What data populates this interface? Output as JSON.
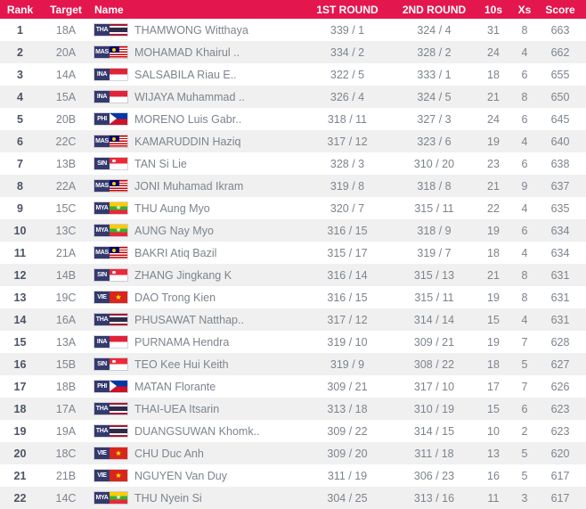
{
  "colors": {
    "header_bg": "#e3164e",
    "header_text": "#ffffff",
    "row_alt": "#f0f0f0",
    "rank_text": "#4d5466",
    "cell_text": "#7c848d",
    "flag_code_bg": "#343a6e"
  },
  "table": {
    "columns": [
      {
        "label": "Rank"
      },
      {
        "label": "Target"
      },
      {
        "label": "Name"
      },
      {
        "label": "1ST ROUND"
      },
      {
        "label": "2ND ROUND"
      },
      {
        "label": "10s"
      },
      {
        "label": "Xs"
      },
      {
        "label": "Score"
      }
    ],
    "rows": [
      {
        "rank": "1",
        "target": "18A",
        "noc": "THA",
        "name": "THAMWONG Witthaya",
        "round1": "339 / 1",
        "round2": "324 / 4",
        "tens": "31",
        "xs": "8",
        "score": "663"
      },
      {
        "rank": "2",
        "target": "20A",
        "noc": "MAS",
        "name": "MOHAMAD Khairul ..",
        "round1": "334 / 2",
        "round2": "328 / 2",
        "tens": "24",
        "xs": "4",
        "score": "662"
      },
      {
        "rank": "3",
        "target": "14A",
        "noc": "INA",
        "name": "SALSABILA Riau E..",
        "round1": "322 / 5",
        "round2": "333 / 1",
        "tens": "18",
        "xs": "6",
        "score": "655"
      },
      {
        "rank": "4",
        "target": "15A",
        "noc": "INA",
        "name": "WIJAYA Muhammad ..",
        "round1": "326 / 4",
        "round2": "324 / 5",
        "tens": "21",
        "xs": "8",
        "score": "650"
      },
      {
        "rank": "5",
        "target": "20B",
        "noc": "PHI",
        "name": "MORENO Luis Gabr..",
        "round1": "318 / 11",
        "round2": "327 / 3",
        "tens": "24",
        "xs": "6",
        "score": "645"
      },
      {
        "rank": "6",
        "target": "22C",
        "noc": "MAS",
        "name": "KAMARUDDIN Haziq",
        "round1": "317 / 12",
        "round2": "323 / 6",
        "tens": "19",
        "xs": "4",
        "score": "640"
      },
      {
        "rank": "7",
        "target": "13B",
        "noc": "SIN",
        "name": "TAN Si Lie",
        "round1": "328 / 3",
        "round2": "310 / 20",
        "tens": "23",
        "xs": "6",
        "score": "638"
      },
      {
        "rank": "8",
        "target": "22A",
        "noc": "MAS",
        "name": "JONI Muhamad Ikram",
        "round1": "319 / 8",
        "round2": "318 / 8",
        "tens": "21",
        "xs": "9",
        "score": "637"
      },
      {
        "rank": "9",
        "target": "15C",
        "noc": "MYA",
        "name": "THU Aung Myo",
        "round1": "320 / 7",
        "round2": "315 / 11",
        "tens": "22",
        "xs": "4",
        "score": "635"
      },
      {
        "rank": "10",
        "target": "13C",
        "noc": "MYA",
        "name": "AUNG Nay Myo",
        "round1": "316 / 15",
        "round2": "318 / 9",
        "tens": "19",
        "xs": "6",
        "score": "634"
      },
      {
        "rank": "11",
        "target": "21A",
        "noc": "MAS",
        "name": "BAKRI Atiq Bazil",
        "round1": "315 / 17",
        "round2": "319 / 7",
        "tens": "18",
        "xs": "4",
        "score": "634"
      },
      {
        "rank": "12",
        "target": "14B",
        "noc": "SIN",
        "name": "ZHANG Jingkang K",
        "round1": "316 / 14",
        "round2": "315 / 13",
        "tens": "21",
        "xs": "8",
        "score": "631"
      },
      {
        "rank": "13",
        "target": "19C",
        "noc": "VIE",
        "name": "DAO Trong Kien",
        "round1": "316 / 15",
        "round2": "315 / 11",
        "tens": "19",
        "xs": "8",
        "score": "631"
      },
      {
        "rank": "14",
        "target": "16A",
        "noc": "THA",
        "name": "PHUSAWAT Natthap..",
        "round1": "317 / 12",
        "round2": "314 / 14",
        "tens": "15",
        "xs": "4",
        "score": "631"
      },
      {
        "rank": "15",
        "target": "13A",
        "noc": "INA",
        "name": "PURNAMA Hendra",
        "round1": "319 / 10",
        "round2": "309 / 21",
        "tens": "19",
        "xs": "7",
        "score": "628"
      },
      {
        "rank": "16",
        "target": "15B",
        "noc": "SIN",
        "name": "TEO Kee Hui Keith",
        "round1": "319 / 9",
        "round2": "308 / 22",
        "tens": "18",
        "xs": "5",
        "score": "627"
      },
      {
        "rank": "17",
        "target": "18B",
        "noc": "PHI",
        "name": "MATAN Florante",
        "round1": "309 / 21",
        "round2": "317 / 10",
        "tens": "17",
        "xs": "7",
        "score": "626"
      },
      {
        "rank": "18",
        "target": "17A",
        "noc": "THA",
        "name": "THAI-UEA Itsarin",
        "round1": "313 / 18",
        "round2": "310 / 19",
        "tens": "15",
        "xs": "6",
        "score": "623"
      },
      {
        "rank": "19",
        "target": "19A",
        "noc": "THA",
        "name": "DUANGSUWAN Khomk..",
        "round1": "309 / 22",
        "round2": "314 / 15",
        "tens": "10",
        "xs": "2",
        "score": "623"
      },
      {
        "rank": "20",
        "target": "18C",
        "noc": "VIE",
        "name": "CHU Duc Anh",
        "round1": "309 / 20",
        "round2": "311 / 18",
        "tens": "13",
        "xs": "5",
        "score": "620"
      },
      {
        "rank": "21",
        "target": "21B",
        "noc": "VIE",
        "name": "NGUYEN Van Duy",
        "round1": "311 / 19",
        "round2": "306 / 23",
        "tens": "16",
        "xs": "5",
        "score": "617"
      },
      {
        "rank": "22",
        "target": "14C",
        "noc": "MYA",
        "name": "THU Nyein Si",
        "round1": "304 / 25",
        "round2": "313 / 16",
        "tens": "11",
        "xs": "3",
        "score": "617"
      }
    ]
  }
}
